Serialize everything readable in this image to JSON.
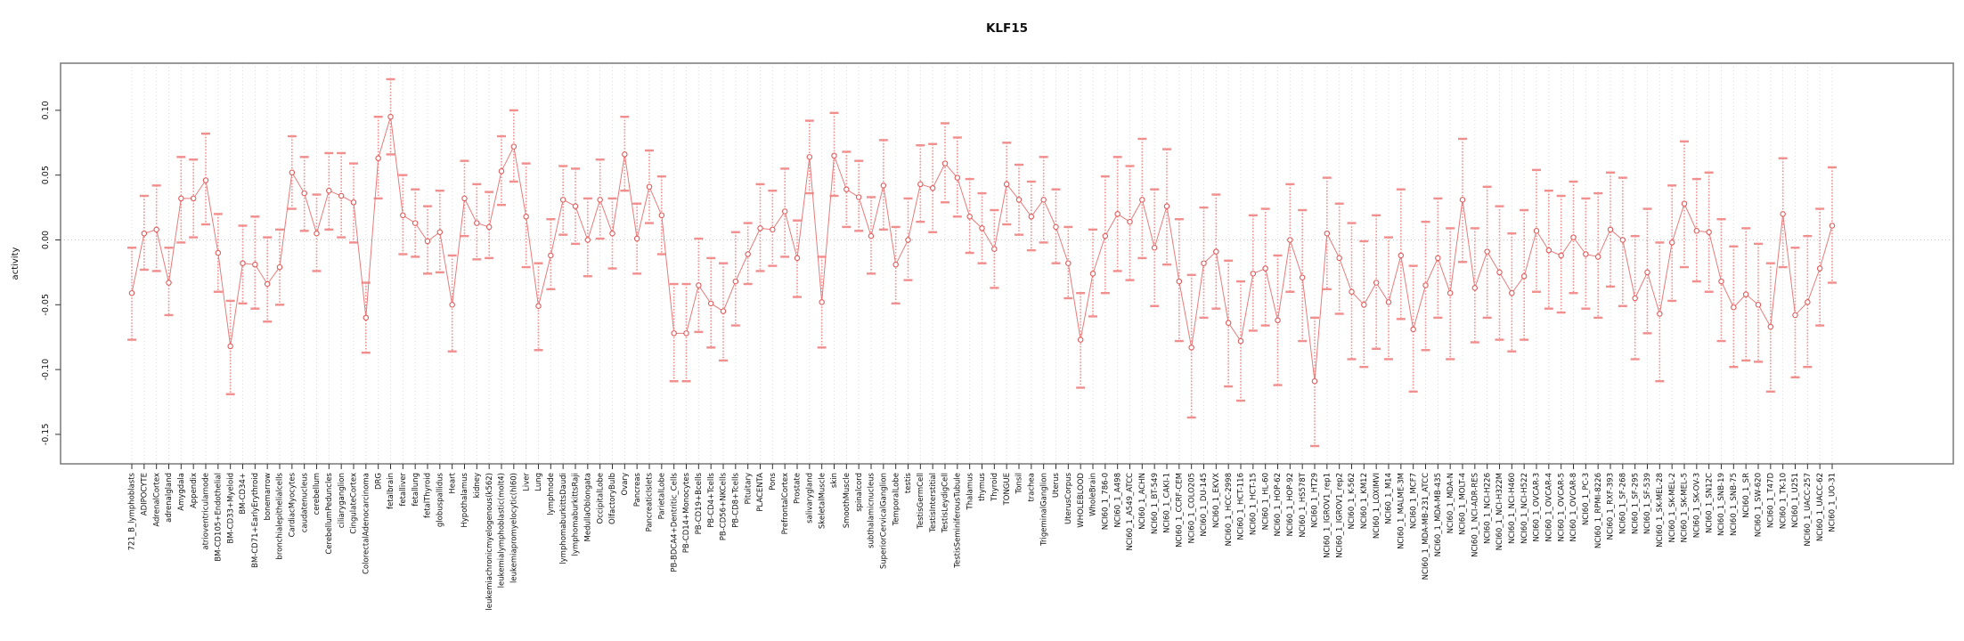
{
  "page": {
    "title": "KLF15"
  },
  "chart_data": {
    "type": "line",
    "subtype": "point-line-with-error-bars",
    "title": "KLF15",
    "xlabel": "",
    "ylabel": "activity",
    "ylim": [
      -0.173,
      0.137
    ],
    "yticks": [
      "0.10",
      "0.05",
      "0.00",
      "-0.05",
      "-0.10",
      "-0.15"
    ],
    "ytick_values": [
      0.1,
      0.05,
      0.0,
      -0.05,
      -0.1,
      -0.15
    ],
    "grid": "vertical dotted line per category, dotted horizontal zero line",
    "legend_position": "none",
    "colors": {
      "error_bar": "#F18E8E",
      "line": "#E87B7B",
      "point": "#E05C5C",
      "gridline": "#DCDCDC",
      "zero_line": "#C8C8C8",
      "frame": "#808080",
      "text": "#111111"
    },
    "categories": [
      "721_B_lymphoblasts",
      "ADIPOCYTE",
      "AdrenalCortex",
      "adrenalgland",
      "Amygdala",
      "Appendix",
      "atrioventricularnode",
      "BM-CD105+Endothelial",
      "BM-CD33+Myeloid",
      "BM-CD34+",
      "BM-CD71+EarlyErythroid",
      "bonemarrow",
      "bronchialepithelialcells",
      "CardiacMyocytes",
      "caudatenucleus",
      "cerebellum",
      "CerebellumPeduncles",
      "ciliaryganglion",
      "CingulateCortex",
      "ColorectalAdenocarcinoma",
      "DRG",
      "fetalbrain",
      "fetalliver",
      "fetallung",
      "fetalThyroid",
      "globuspallidus",
      "Heart",
      "Hypothalamus",
      "kidney",
      "leukemiachronicmyelogenous(k562)",
      "leukemialymphoblastic(molt4)",
      "leukemiapromyelocytic(hl60)",
      "Liver",
      "Lung",
      "lymphnode",
      "lymphomaburkittsDaudi",
      "lymphomaburkittsRaji",
      "MedullaOblongata",
      "OccipitalLobe",
      "OlfactoryBulb",
      "Ovary",
      "Pancreas",
      "PancreaticIslets",
      "ParietalLobe",
      "PB-BDCA4+Dentritic_Cells",
      "PB-CD14+Monocytes",
      "PB-CD19+Bcells",
      "PB-CD4+Tcells",
      "PB-CD56+NKCells",
      "PB-CD8+Tcells",
      "Pituitary",
      "PLACENTA",
      "Pons",
      "PrefrontalCortex",
      "Prostate",
      "salivarygland",
      "SkeletalMuscle",
      "skin",
      "SmoothMuscle",
      "spinalcord",
      "subthalamicnucleus",
      "SuperiorCervicalGanglion",
      "TemporalLobe",
      "testis",
      "TestisGermCell",
      "TestisInterstitial",
      "TestisLeydigCell",
      "TestisSeminiferousTubule",
      "Thalamus",
      "thymus",
      "Thyroid",
      "TONGUE",
      "Tonsil",
      "trachea",
      "TrigeminalGanglion",
      "Uterus",
      "UterusCorpus",
      "WHOLEBLOOD",
      "WholeBrain",
      "NCI60_1_786-0",
      "NCI60_1_A498",
      "NCI60_1_A549_ATCC",
      "NCI60_1_ACHN",
      "NCI60_1_BT-549",
      "NCI60_1_CAKI-1",
      "NCI60_1_CCRF-CEM",
      "NCI60_1_COLO205",
      "NCI60_1_DU-145",
      "NCI60_1_EKVX",
      "NCI60_1_HCC-2998",
      "NCI60_1_HCT-116",
      "NCI60_1_HCT-15",
      "NCI60_1_HL-60",
      "NCI60_1_HOP-62",
      "NCI60_1_HOP-92",
      "NCI60_1_HS578T",
      "NCI60_1_HT29",
      "NCI60_1_IGROV1_rep1",
      "NCI60_1_IGROV1_rep2",
      "NCI60_1_K-562",
      "NCI60_1_KM12",
      "NCI60_1_LOXIMVI",
      "NCI60_1_M14",
      "NCI60_1_MALME-3M",
      "NCI60_1_MCF7",
      "NCI60_1_MDA-MB-231_ATCC",
      "NCI60_1_MDA-MB-435",
      "NCI60_1_MDA-N",
      "NCI60_1_MOLT-4",
      "NCI60_1_NCI-ADR-RES",
      "NCI60_1_NCI-H226",
      "NCI60_1_NCI-H322M",
      "NCI60_1_NCI-H460",
      "NCI60_1_NCI-H522",
      "NCI60_1_OVCAR-3",
      "NCI60_1_OVCAR-4",
      "NCI60_1_OVCAR-5",
      "NCI60_1_OVCAR-8",
      "NCI60_1_PC-3",
      "NCI60_1_RPMI-8226",
      "NCI60_1_RXF-393",
      "NCI60_1_SF-268",
      "NCI60_1_SF-295",
      "NCI60_1_SF-539",
      "NCI60_1_SK-MEL-28",
      "NCI60_1_SK-MEL-2",
      "NCI60_1_SK-MEL-5",
      "NCI60_1_SK-OV-3",
      "NCI60_1_SN12C",
      "NCI60_1_SNB-19",
      "NCI60_1_SNB-75",
      "NCI60_1_SR",
      "NCI60_1_SW-620",
      "NCI60_1_T47D",
      "NCI60_1_TK-10",
      "NCI60_1_U251",
      "NCI60_1_UACC-257",
      "NCI60_1_UACC-62",
      "NCI60_1_UO-31"
    ],
    "series": [
      {
        "name": "activity",
        "values": [
          -0.041,
          0.005,
          0.008,
          -0.033,
          0.032,
          0.032,
          0.046,
          -0.01,
          -0.082,
          -0.018,
          -0.019,
          -0.034,
          -0.021,
          0.052,
          0.036,
          0.005,
          0.038,
          0.034,
          0.029,
          -0.06,
          0.063,
          0.095,
          0.019,
          0.013,
          -0.001,
          0.006,
          -0.05,
          0.032,
          0.013,
          0.01,
          0.053,
          0.072,
          0.018,
          -0.051,
          -0.012,
          0.031,
          0.026,
          0.0,
          0.031,
          0.005,
          0.066,
          0.001,
          0.041,
          0.019,
          -0.072,
          -0.072,
          -0.035,
          -0.049,
          -0.055,
          -0.032,
          -0.011,
          0.009,
          0.008,
          0.022,
          -0.014,
          0.064,
          -0.048,
          0.065,
          0.039,
          0.033,
          0.003,
          0.042,
          -0.019,
          0.0,
          0.043,
          0.04,
          0.059,
          0.048,
          0.018,
          0.009,
          -0.007,
          0.043,
          0.031,
          0.018,
          0.031,
          0.01,
          -0.018,
          -0.077,
          -0.026,
          0.003,
          0.02,
          0.014,
          0.031,
          -0.006,
          0.026,
          -0.032,
          -0.083,
          -0.018,
          -0.009,
          -0.064,
          -0.078,
          -0.026,
          -0.022,
          -0.062,
          0.0,
          -0.029,
          -0.109,
          0.005,
          -0.014,
          -0.04,
          -0.05,
          -0.033,
          -0.048,
          -0.012,
          -0.069,
          -0.035,
          -0.014,
          -0.041,
          0.031,
          -0.037,
          -0.009,
          -0.025,
          -0.041,
          -0.028,
          0.007,
          -0.008,
          -0.012,
          0.002,
          -0.011,
          -0.013,
          0.008,
          0.0,
          -0.045,
          -0.025,
          -0.057,
          -0.002,
          0.028,
          0.007,
          0.006,
          -0.032,
          -0.052,
          -0.042,
          -0.05,
          -0.067,
          0.02,
          -0.058,
          -0.048,
          -0.022,
          0.011
        ],
        "ci_low": [
          -0.077,
          -0.023,
          -0.024,
          -0.058,
          -0.002,
          0.002,
          0.012,
          -0.04,
          -0.119,
          -0.049,
          -0.053,
          -0.063,
          -0.05,
          0.024,
          0.007,
          -0.024,
          0.008,
          0.002,
          -0.002,
          -0.087,
          0.032,
          0.066,
          -0.011,
          -0.013,
          -0.026,
          -0.025,
          -0.086,
          0.003,
          -0.015,
          -0.014,
          0.027,
          0.045,
          -0.021,
          -0.085,
          -0.038,
          0.004,
          -0.003,
          -0.028,
          0.001,
          -0.022,
          0.038,
          -0.026,
          0.013,
          -0.011,
          -0.109,
          -0.109,
          -0.071,
          -0.083,
          -0.093,
          -0.066,
          -0.034,
          -0.024,
          -0.02,
          -0.013,
          -0.044,
          0.036,
          -0.083,
          0.034,
          0.01,
          0.007,
          -0.026,
          0.008,
          -0.049,
          -0.031,
          0.014,
          0.006,
          0.029,
          0.018,
          -0.01,
          -0.018,
          -0.037,
          0.012,
          0.004,
          -0.008,
          -0.002,
          -0.018,
          -0.045,
          -0.114,
          -0.059,
          -0.041,
          -0.024,
          -0.031,
          -0.014,
          -0.051,
          -0.019,
          -0.078,
          -0.137,
          -0.06,
          -0.053,
          -0.113,
          -0.124,
          -0.07,
          -0.066,
          -0.112,
          -0.04,
          -0.078,
          -0.159,
          -0.038,
          -0.057,
          -0.092,
          -0.098,
          -0.084,
          -0.092,
          -0.061,
          -0.117,
          -0.085,
          -0.06,
          -0.092,
          -0.017,
          -0.079,
          -0.06,
          -0.077,
          -0.086,
          -0.077,
          -0.04,
          -0.053,
          -0.056,
          -0.041,
          -0.053,
          -0.06,
          -0.036,
          -0.051,
          -0.092,
          -0.072,
          -0.109,
          -0.047,
          -0.021,
          -0.032,
          -0.04,
          -0.078,
          -0.098,
          -0.093,
          -0.094,
          -0.117,
          -0.021,
          -0.106,
          -0.098,
          -0.066,
          -0.033
        ],
        "ci_high": [
          -0.006,
          0.034,
          0.042,
          -0.006,
          0.064,
          0.062,
          0.082,
          0.02,
          -0.047,
          0.011,
          0.018,
          0.002,
          0.008,
          0.08,
          0.064,
          0.035,
          0.067,
          0.067,
          0.059,
          -0.033,
          0.095,
          0.124,
          0.05,
          0.039,
          0.026,
          0.038,
          -0.012,
          0.061,
          0.043,
          0.037,
          0.08,
          0.1,
          0.059,
          -0.018,
          0.016,
          0.057,
          0.055,
          0.032,
          0.062,
          0.032,
          0.095,
          0.028,
          0.069,
          0.049,
          -0.034,
          -0.034,
          0.001,
          -0.014,
          -0.018,
          0.006,
          0.013,
          0.043,
          0.038,
          0.055,
          0.015,
          0.092,
          -0.013,
          0.098,
          0.068,
          0.061,
          0.033,
          0.077,
          0.01,
          0.032,
          0.073,
          0.074,
          0.09,
          0.079,
          0.047,
          0.036,
          0.023,
          0.075,
          0.058,
          0.045,
          0.064,
          0.039,
          0.01,
          -0.041,
          0.008,
          0.049,
          0.064,
          0.057,
          0.078,
          0.039,
          0.07,
          0.016,
          -0.027,
          0.025,
          0.035,
          -0.016,
          -0.032,
          0.019,
          0.024,
          -0.012,
          0.043,
          0.023,
          -0.06,
          0.048,
          0.028,
          0.013,
          -0.001,
          0.019,
          0.002,
          0.039,
          -0.02,
          0.014,
          0.032,
          0.009,
          0.078,
          0.009,
          0.041,
          0.026,
          0.005,
          0.023,
          0.054,
          0.038,
          0.034,
          0.045,
          0.032,
          0.036,
          0.052,
          0.048,
          0.003,
          0.024,
          -0.002,
          0.042,
          0.076,
          0.047,
          0.052,
          0.016,
          -0.005,
          0.009,
          -0.003,
          -0.018,
          0.063,
          -0.006,
          0.003,
          0.024,
          0.056
        ]
      }
    ]
  }
}
